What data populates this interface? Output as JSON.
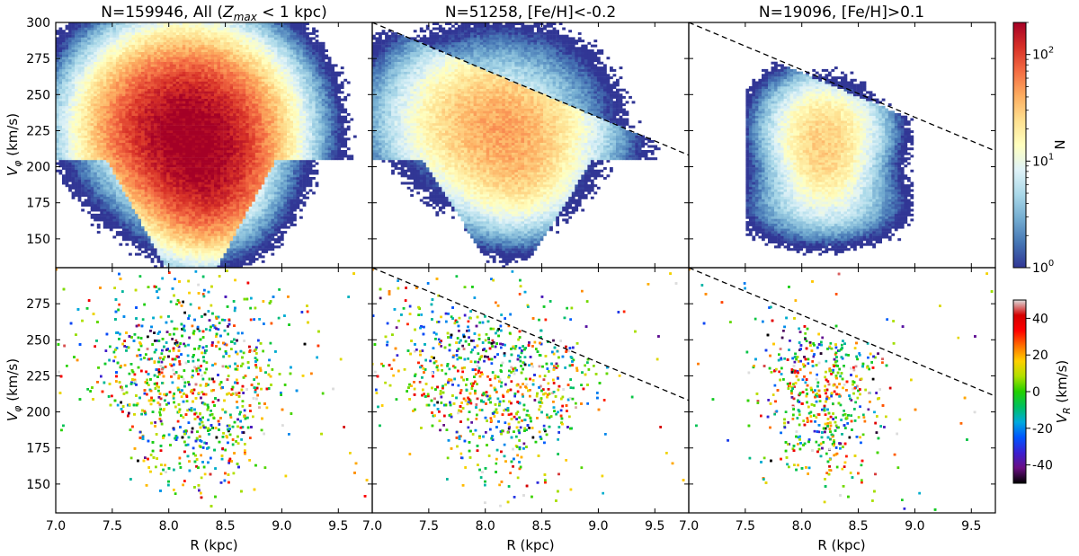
{
  "chart_data": [
    {
      "type": "heatmap",
      "panel": "top-left",
      "title": "N=159946, All (Z_max < 1 kpc)",
      "title_parts": {
        "prefix": "N=159946, All (",
        "sym": "Z",
        "sub": "max",
        "suffix": " < 1 kpc)"
      },
      "ylabel": "V_phi (km/s)",
      "xlim": [
        7.0,
        9.8
      ],
      "ylim": [
        130,
        300
      ],
      "density_peaks": [
        {
          "R": 8.1,
          "Vphi": 228,
          "N": 200
        }
      ],
      "dashed_line": null
    },
    {
      "type": "heatmap",
      "panel": "top-middle",
      "title": "N=51258, [Fe/H]<-0.2",
      "xlim": [
        7.0,
        9.8
      ],
      "ylim": [
        130,
        300
      ],
      "density_peaks": [
        {
          "R": 8.05,
          "Vphi": 232,
          "N": 40
        }
      ],
      "dashed_line": {
        "x": [
          7.0,
          9.8
        ],
        "y": [
          300,
          208
        ]
      }
    },
    {
      "type": "heatmap",
      "panel": "top-right",
      "title": "N=19096, [Fe/H]>0.1",
      "xlim": [
        7.0,
        9.8
      ],
      "ylim": [
        130,
        300
      ],
      "density_peaks": [
        {
          "R": 8.15,
          "Vphi": 226,
          "N": 25
        }
      ],
      "dashed_line": {
        "x": [
          7.0,
          9.8
        ],
        "y": [
          300,
          208
        ]
      }
    },
    {
      "type": "scatter",
      "panel": "bottom-left",
      "ylabel": "V_phi (km/s)",
      "xlabel": "R (kpc)",
      "xlim": [
        7.0,
        9.8
      ],
      "ylim": [
        130,
        300
      ],
      "dashed_line": null
    },
    {
      "type": "scatter",
      "panel": "bottom-middle",
      "xlabel": "R (kpc)",
      "xlim": [
        7.0,
        9.8
      ],
      "ylim": [
        130,
        300
      ],
      "dashed_line": {
        "x": [
          7.0,
          9.8
        ],
        "y": [
          300,
          208
        ]
      }
    },
    {
      "type": "scatter",
      "panel": "bottom-right",
      "xlabel": "R (kpc)",
      "xlim": [
        7.0,
        9.8
      ],
      "ylim": [
        130,
        300
      ],
      "dashed_line": {
        "x": [
          7.0,
          9.8
        ],
        "y": [
          300,
          208
        ]
      }
    }
  ],
  "axes": {
    "x_ticks": [
      "7.0",
      "7.5",
      "8.0",
      "8.5",
      "9.0",
      "9.5"
    ],
    "x_tick_values": [
      7.0,
      7.5,
      8.0,
      8.5,
      9.0,
      9.5
    ],
    "y_ticks": [
      "150",
      "175",
      "200",
      "225",
      "250",
      "275",
      "300"
    ],
    "y_tick_values": [
      150,
      175,
      200,
      225,
      250,
      275,
      300
    ],
    "xlabel": "R (kpc)",
    "ylabel_sym": "V",
    "ylabel_sub": "φ",
    "ylabel_unit": " (km/s)"
  },
  "colorbar_top": {
    "label": "N",
    "scale": "log",
    "range": [
      1,
      200
    ],
    "ticks": [
      {
        "base": "10",
        "exp": "0",
        "value": 1
      },
      {
        "base": "10",
        "exp": "1",
        "value": 10
      },
      {
        "base": "10",
        "exp": "2",
        "value": 100
      }
    ],
    "colormap": [
      "#313695",
      "#4575b4",
      "#74add1",
      "#abd9e9",
      "#e0f3f8",
      "#ffffbf",
      "#fee090",
      "#fdae61",
      "#f46d43",
      "#d73027",
      "#a50026"
    ]
  },
  "colorbar_bottom": {
    "label_sym": "V",
    "label_sub": "R",
    "label_unit": " (km/s)",
    "range": [
      -50,
      50
    ],
    "ticks": [
      "-40",
      "-20",
      "0",
      "20",
      "40"
    ],
    "tick_values": [
      -40,
      -20,
      0,
      20,
      40
    ],
    "colormap": [
      "#000000",
      "#6a0d83",
      "#3b1fd1",
      "#0055ff",
      "#00aadd",
      "#00c060",
      "#22d000",
      "#b0e000",
      "#ffd000",
      "#ff7000",
      "#ff0000",
      "#d40000",
      "#dddddd"
    ]
  }
}
